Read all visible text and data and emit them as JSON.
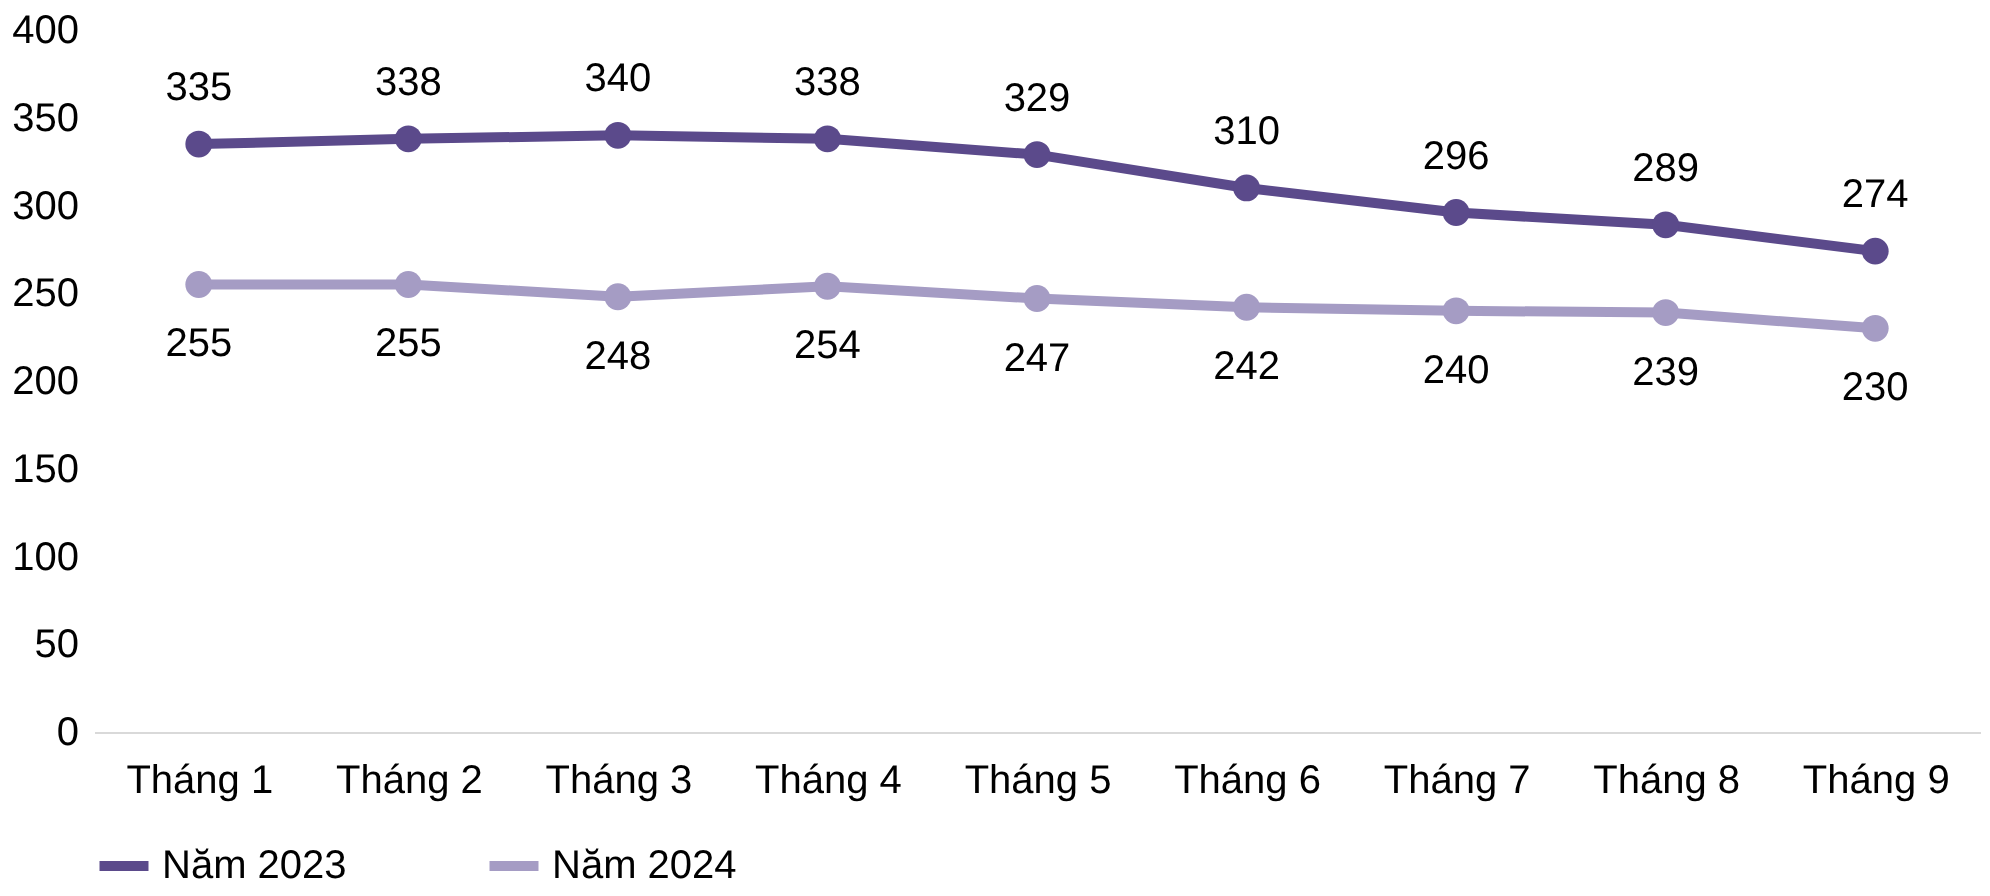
{
  "chart_data": {
    "type": "line",
    "categories": [
      "Tháng 1",
      "Tháng 2",
      "Tháng 3",
      "Tháng 4",
      "Tháng 5",
      "Tháng 6",
      "Tháng 7",
      "Tháng 8",
      "Tháng 9"
    ],
    "series": [
      {
        "name": "Năm 2023",
        "color": "#5b4a8b",
        "values": [
          335,
          338,
          340,
          338,
          329,
          310,
          296,
          289,
          274
        ]
      },
      {
        "name": "Năm 2024",
        "color": "#a59cc4",
        "values": [
          255,
          255,
          248,
          254,
          247,
          242,
          240,
          239,
          230
        ]
      }
    ],
    "ylim": [
      0,
      400
    ],
    "yticks": [
      0,
      50,
      100,
      150,
      200,
      250,
      300,
      350,
      400
    ],
    "grid": false,
    "legend": "bottom",
    "marker": "circle",
    "line_style": "solid",
    "data_labels": true
  }
}
